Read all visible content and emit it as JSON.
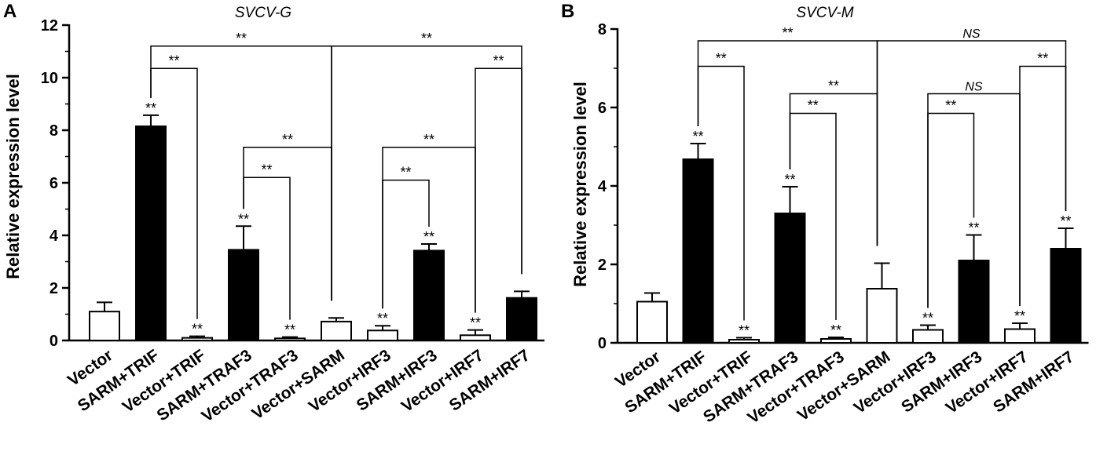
{
  "chart_data": [
    {
      "type": "bar",
      "panel": "A",
      "title": "SVCV-G",
      "ylabel": "Relative expression level",
      "xlabel": "",
      "ylim": [
        0,
        12
      ],
      "yticks": [
        "0",
        "2",
        "4",
        "6",
        "8",
        "10",
        "12"
      ],
      "yticks_values": [
        0,
        2,
        4,
        6,
        8,
        10,
        12
      ],
      "categories": [
        "Vector",
        "SARM+TRIF",
        "Vector+TRIF",
        "SARM+TRAF3",
        "Vector+TRAF3",
        "Vector+SARM",
        "Vector+IRF3",
        "SARM+IRF3",
        "Vector+IRF7",
        "SARM+IRF7"
      ],
      "values": [
        1.1,
        8.15,
        0.1,
        3.45,
        0.08,
        0.72,
        0.38,
        3.42,
        0.2,
        1.62
      ],
      "errors": [
        0.35,
        0.42,
        0.06,
        0.9,
        0.05,
        0.14,
        0.18,
        0.25,
        0.2,
        0.25
      ],
      "fills": [
        "white",
        "black",
        "white",
        "black",
        "white",
        "white",
        "white",
        "black",
        "white",
        "black"
      ],
      "bar_annotations": [
        "",
        "**",
        "**",
        "**",
        "**",
        "",
        "**",
        "**",
        "**",
        ""
      ],
      "comparisons": [
        {
          "from": 1,
          "to": 5,
          "y": 11.2,
          "label": "**"
        },
        {
          "from": 5,
          "to": 9,
          "y": 11.2,
          "label": "**"
        },
        {
          "from": 1,
          "to": 2,
          "y": 10.35,
          "label": "**"
        },
        {
          "from": 3,
          "to": 5,
          "y": 7.35,
          "label": "**"
        },
        {
          "from": 3,
          "to": 4,
          "y": 6.2,
          "label": "**"
        },
        {
          "from": 6,
          "to": 8,
          "y": 7.35,
          "label": "**"
        },
        {
          "from": 6,
          "to": 7,
          "y": 6.1,
          "label": "**"
        },
        {
          "from": 8,
          "to": 9,
          "y": 10.35,
          "label": "**"
        }
      ]
    },
    {
      "type": "bar",
      "panel": "B",
      "title": "SVCV-M",
      "ylabel": "Relative expression level",
      "xlabel": "",
      "ylim": [
        0,
        8
      ],
      "yticks": [
        "0",
        "2",
        "4",
        "6",
        "8"
      ],
      "yticks_values": [
        0,
        2,
        4,
        6,
        8
      ],
      "categories": [
        "Vector",
        "SARM+TRIF",
        "Vector+TRIF",
        "SARM+TRAF3",
        "Vector+TRAF3",
        "Vector+SARM",
        "Vector+IRF3",
        "SARM+IRF3",
        "Vector+IRF7",
        "SARM+IRF7"
      ],
      "values": [
        1.05,
        4.68,
        0.08,
        3.3,
        0.1,
        1.38,
        0.33,
        2.1,
        0.35,
        2.4
      ],
      "errors": [
        0.22,
        0.4,
        0.05,
        0.68,
        0.04,
        0.65,
        0.12,
        0.65,
        0.15,
        0.52
      ],
      "fills": [
        "white",
        "black",
        "white",
        "black",
        "white",
        "white",
        "white",
        "black",
        "white",
        "black"
      ],
      "bar_annotations": [
        "",
        "**",
        "**",
        "**",
        "**",
        "",
        "**",
        "**",
        "**",
        "**"
      ],
      "comparisons": [
        {
          "from": 1,
          "to": 5,
          "y": 7.7,
          "label": "**"
        },
        {
          "from": 5,
          "to": 9,
          "y": 7.7,
          "label": "NS"
        },
        {
          "from": 1,
          "to": 2,
          "y": 7.05,
          "label": "**"
        },
        {
          "from": 3,
          "to": 5,
          "y": 6.35,
          "label": "**"
        },
        {
          "from": 3,
          "to": 4,
          "y": 5.85,
          "label": "**"
        },
        {
          "from": 6,
          "to": 8,
          "y": 6.35,
          "label": "NS"
        },
        {
          "from": 6,
          "to": 7,
          "y": 5.85,
          "label": "**"
        },
        {
          "from": 8,
          "to": 9,
          "y": 7.05,
          "label": "**"
        }
      ]
    }
  ]
}
